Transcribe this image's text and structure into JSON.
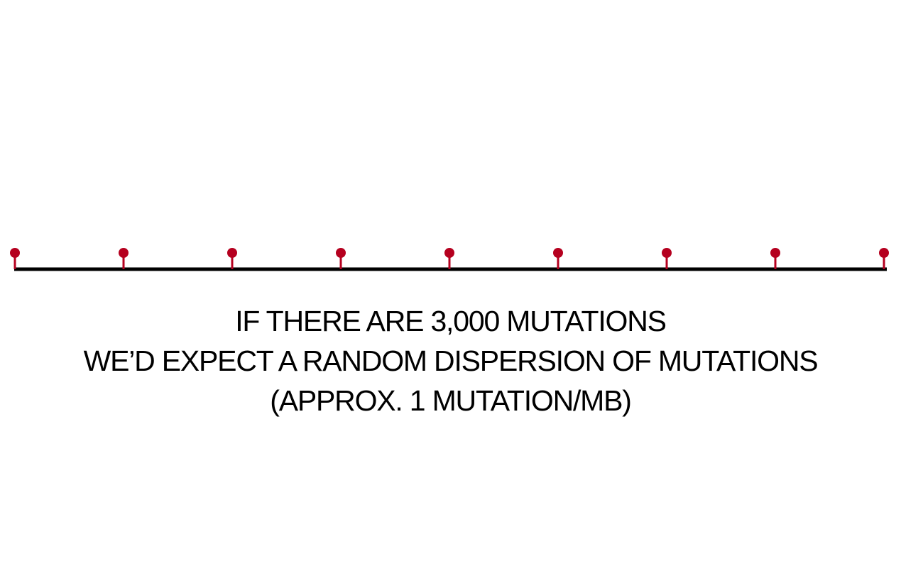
{
  "colors": {
    "background": "#ffffff",
    "axis_line": "#000000",
    "mutation_marker": "#b5001f",
    "text": "#000000"
  },
  "diagram": {
    "marker_icon": "pin-marker-icon",
    "marker_count": 9,
    "spacing": "evenly spaced"
  },
  "caption": {
    "line_1": "IF THERE ARE 3,000 MUTATIONS",
    "line_2": "WE’D EXPECT A RANDOM DISPERSION OF MUTATIONS",
    "line_3": "(APPROX. 1 MUTATION/MB)"
  }
}
